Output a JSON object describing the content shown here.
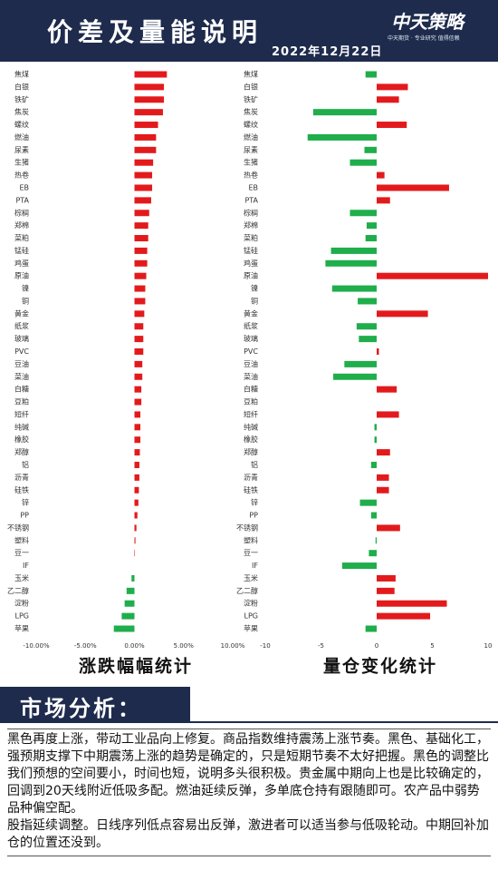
{
  "header": {
    "title": "价差及量能说明",
    "date": "2022年12月22日",
    "logo": "中天策略",
    "tagline": "中天期货 · 专业研究 值得信赖"
  },
  "chart_data": [
    {
      "type": "hbar",
      "title": "涨跌幅幅统计",
      "categories": [
        "焦煤",
        "白银",
        "铁矿",
        "焦炭",
        "螺纹",
        "燃油",
        "尿素",
        "生猪",
        "热卷",
        "EB",
        "PTA",
        "棕榈",
        "郑棉",
        "菜粕",
        "锰硅",
        "鸡蛋",
        "原油",
        "镍",
        "铜",
        "黄金",
        "纸浆",
        "玻璃",
        "PVC",
        "豆油",
        "菜油",
        "白糖",
        "豆粕",
        "短纤",
        "纯碱",
        "橡胶",
        "郑醇",
        "铝",
        "沥青",
        "硅铁",
        "锌",
        "PP",
        "不锈钢",
        "塑料",
        "豆一",
        "IF",
        "玉米",
        "乙二醇",
        "淀粉",
        "LPG",
        "苹果"
      ],
      "values": [
        3.3,
        3.0,
        3.0,
        2.9,
        2.4,
        2.2,
        2.2,
        1.9,
        1.8,
        1.8,
        1.7,
        1.5,
        1.4,
        1.4,
        1.3,
        1.3,
        1.2,
        1.1,
        1.1,
        1.0,
        0.9,
        0.9,
        0.9,
        0.8,
        0.8,
        0.7,
        0.7,
        0.6,
        0.6,
        0.6,
        0.55,
        0.5,
        0.5,
        0.45,
        0.4,
        0.3,
        0.2,
        0.1,
        0.05,
        0,
        -0.3,
        -0.8,
        -1.0,
        -1.3,
        -2.1
      ],
      "positive_color": "#e31a1c",
      "negative_color": "#1fae4b",
      "xlim": [
        -10,
        10
      ],
      "xticks": [
        {
          "value": -10,
          "label": "-10.00%"
        },
        {
          "value": -5,
          "label": "-5.00%"
        },
        {
          "value": 0,
          "label": "0.00%"
        },
        {
          "value": 5,
          "label": "5.00%"
        },
        {
          "value": 10,
          "label": "10.00%"
        }
      ],
      "grid": false
    },
    {
      "type": "hbar",
      "title": "量仓变化统计",
      "categories": [
        "焦煤",
        "白银",
        "铁矿",
        "焦炭",
        "螺纹",
        "燃油",
        "尿素",
        "生猪",
        "热卷",
        "EB",
        "PTA",
        "棕榈",
        "郑棉",
        "菜粕",
        "锰硅",
        "鸡蛋",
        "原油",
        "镍",
        "铜",
        "黄金",
        "纸浆",
        "玻璃",
        "PVC",
        "豆油",
        "菜油",
        "白糖",
        "豆粕",
        "短纤",
        "纯碱",
        "橡胶",
        "郑醇",
        "铝",
        "沥青",
        "硅铁",
        "锌",
        "PP",
        "不锈钢",
        "塑料",
        "豆一",
        "IF",
        "玉米",
        "乙二醇",
        "淀粉",
        "LPG",
        "苹果"
      ],
      "values": [
        -1.0,
        2.8,
        2.0,
        -5.7,
        2.7,
        -6.2,
        -1.1,
        -2.4,
        0.7,
        6.5,
        1.2,
        -2.4,
        -0.9,
        -1.0,
        -4.1,
        -4.6,
        10.0,
        -4.0,
        -1.7,
        4.6,
        -1.8,
        -1.6,
        0.2,
        -2.9,
        -3.9,
        1.8,
        0,
        2.0,
        -0.2,
        -0.2,
        1.2,
        -0.5,
        1.1,
        1.1,
        -1.5,
        -0.5,
        2.1,
        -0.1,
        -0.7,
        -3.1,
        1.7,
        1.6,
        6.3,
        4.8,
        -1.0
      ],
      "positive_color": "#e31a1c",
      "negative_color": "#1fae4b",
      "xlim": [
        -10,
        10
      ],
      "xticks": [
        -10,
        -5,
        0,
        5,
        10
      ],
      "grid": false
    }
  ],
  "analysis": {
    "title": "市场分析：",
    "paragraphs": [
      "黑色再度上涨，带动工业品向上修复。商品指数维持震荡上涨节奏。黑色、基础化工，强预期支撑下中期震荡上涨的趋势是确定的，只是短期节奏不太好把握。黑色的调整比我们预想的空间要小，时间也短，说明多头很积极。贵金属中期向上也是比较确定的，回调到20天线附近低吸多配。燃油延续反弹，多单底仓持有跟随即可。农产品中弱势品种偏空配。",
      "股指延续调整。日线序列低点容易出反弹，激进者可以适当参与低吸轮动。中期回补加仓的位置还没到。"
    ]
  }
}
